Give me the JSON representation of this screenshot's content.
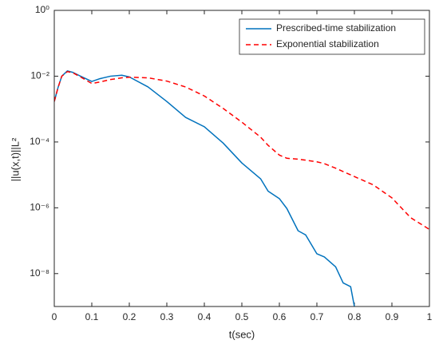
{
  "chart_data": {
    "type": "line",
    "xlabel": "t(sec)",
    "ylabel": "||u(x,t)||L²",
    "x": [
      0,
      0.01,
      0.02,
      0.035,
      0.05,
      0.07,
      0.1,
      0.12,
      0.15,
      0.18,
      0.2,
      0.25,
      0.3,
      0.35,
      0.4,
      0.45,
      0.5,
      0.55,
      0.57,
      0.6,
      0.62,
      0.65,
      0.67,
      0.7,
      0.72,
      0.75,
      0.77,
      0.79,
      0.8,
      0.85,
      0.9,
      0.95,
      1.0
    ],
    "series": [
      {
        "name": "Prescribed-time stabilization",
        "color": "#0072bd",
        "dash": "none",
        "values": [
          0.0017,
          0.0045,
          0.01,
          0.0145,
          0.013,
          0.01,
          0.0069,
          0.0083,
          0.01,
          0.0107,
          0.0095,
          0.0047,
          0.0017,
          0.00056,
          0.00029,
          9.3e-05,
          2.3e-05,
          7.6e-06,
          3.2e-06,
          1.9e-06,
          9.5e-07,
          2e-07,
          1.5e-07,
          4e-08,
          3.2e-08,
          1.6e-08,
          5.2e-09,
          4e-09,
          1e-09,
          null,
          null,
          null,
          null
        ]
      },
      {
        "name": "Exponential stabilization",
        "color": "#ff0000",
        "dash": "6,4",
        "values": [
          0.0017,
          0.0045,
          0.01,
          0.0138,
          0.0126,
          0.0095,
          0.006,
          0.0066,
          0.0079,
          0.0089,
          0.0093,
          0.0089,
          0.0071,
          0.0047,
          0.0025,
          0.00105,
          0.0004,
          0.00014,
          7.9e-05,
          4e-05,
          3.2e-05,
          3e-05,
          2.8e-05,
          2.5e-05,
          2.2e-05,
          1.6e-05,
          1.26e-05,
          1e-05,
          8.9e-06,
          5e-06,
          2e-06,
          5e-07,
          2.2e-07
        ]
      }
    ],
    "xlim": [
      0,
      1
    ],
    "xticks": [
      0,
      0.1,
      0.2,
      0.3,
      0.4,
      0.5,
      0.6,
      0.7,
      0.8,
      0.9,
      1
    ],
    "ylim": [
      1e-09,
      1
    ],
    "yscale": "log",
    "yticks": [
      {
        "value": 1,
        "label": "10⁰"
      },
      {
        "value": 0.01,
        "label": "10⁻²"
      },
      {
        "value": 0.0001,
        "label": "10⁻⁴"
      },
      {
        "value": 1e-06,
        "label": "10⁻⁶"
      },
      {
        "value": 1e-08,
        "label": "10⁻⁸"
      }
    ],
    "grid": false,
    "legend": "top-right"
  }
}
